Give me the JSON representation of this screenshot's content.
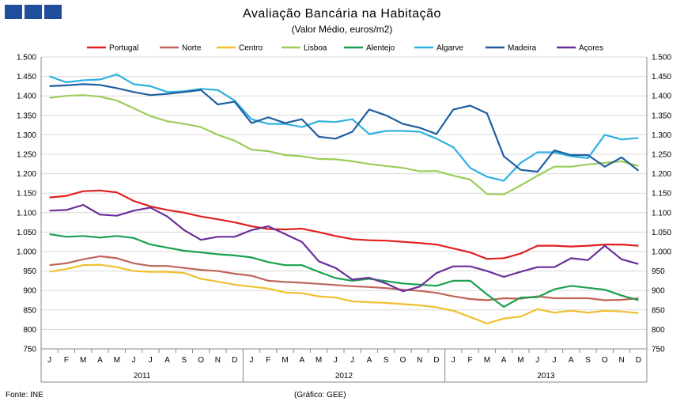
{
  "header": {
    "logo_icon": "ine-logo-blocks",
    "title": "Avaliação Bancária na Habitação",
    "subtitle": "(Valor Médio, euros/m2)"
  },
  "footer": {
    "source": "Fonte: INE",
    "credit": "(Gráfico: GEE)"
  },
  "chart_data": {
    "type": "line",
    "title": "Avaliação Bancária na Habitação",
    "subtitle": "(Valor Médio, euros/m2)",
    "ylabel": "euros/m2",
    "xlabel": "",
    "ylim": [
      750,
      1500
    ],
    "yticks": [
      750,
      800,
      850,
      900,
      950,
      1000,
      1050,
      1100,
      1150,
      1200,
      1250,
      1300,
      1350,
      1400,
      1450,
      1500
    ],
    "ytick_labels": [
      "750",
      "800",
      "850",
      "900",
      "950",
      "1.000",
      "1.050",
      "1.100",
      "1.150",
      "1.200",
      "1.250",
      "1.300",
      "1.350",
      "1.400",
      "1.450",
      "1.500"
    ],
    "grid": "horizontal",
    "legend_position": "top",
    "months": [
      "J",
      "F",
      "M",
      "A",
      "M",
      "J",
      "J",
      "A",
      "S",
      "O",
      "N",
      "D",
      "J",
      "F",
      "M",
      "A",
      "M",
      "J",
      "J",
      "A",
      "S",
      "O",
      "N",
      "D",
      "J",
      "F",
      "M",
      "A",
      "M",
      "J",
      "J",
      "A",
      "S",
      "O",
      "N",
      "D"
    ],
    "years": [
      "2011",
      "2012",
      "2013"
    ],
    "series": [
      {
        "name": "Portugal",
        "color": "#e02020",
        "values": [
          1139,
          1143,
          1155,
          1157,
          1152,
          1130,
          1116,
          1107,
          1100,
          1090,
          1083,
          1075,
          1065,
          1058,
          1057,
          1059,
          1050,
          1040,
          1032,
          1029,
          1028,
          1025,
          1022,
          1018,
          1008,
          998,
          981,
          983,
          995,
          1015,
          1015,
          1013,
          1015,
          1018,
          1018,
          1015
        ]
      },
      {
        "name": "Norte",
        "color": "#c0645a",
        "values": [
          965,
          970,
          980,
          988,
          983,
          970,
          963,
          963,
          958,
          953,
          950,
          943,
          938,
          925,
          922,
          920,
          917,
          914,
          911,
          909,
          906,
          902,
          899,
          894,
          885,
          878,
          875,
          880,
          879,
          885,
          880,
          880,
          880,
          875,
          876,
          880
        ]
      },
      {
        "name": "Centro",
        "color": "#f0c030",
        "values": [
          948,
          955,
          965,
          966,
          960,
          950,
          948,
          948,
          945,
          930,
          923,
          915,
          910,
          905,
          895,
          893,
          885,
          882,
          872,
          870,
          868,
          865,
          862,
          857,
          848,
          832,
          815,
          828,
          833,
          852,
          843,
          848,
          843,
          848,
          846,
          842
        ]
      },
      {
        "name": "Lisboa",
        "color": "#9acd5a",
        "values": [
          1395,
          1400,
          1402,
          1398,
          1388,
          1368,
          1348,
          1335,
          1328,
          1320,
          1300,
          1285,
          1262,
          1258,
          1248,
          1245,
          1238,
          1237,
          1232,
          1225,
          1220,
          1215,
          1206,
          1207,
          1195,
          1185,
          1148,
          1147,
          1170,
          1195,
          1218,
          1218,
          1224,
          1228,
          1232,
          1220
        ]
      },
      {
        "name": "Alentejo",
        "color": "#1aa050",
        "values": [
          1045,
          1038,
          1040,
          1036,
          1040,
          1035,
          1018,
          1010,
          1002,
          998,
          993,
          990,
          985,
          973,
          965,
          965,
          948,
          932,
          925,
          930,
          924,
          918,
          915,
          912,
          925,
          925,
          890,
          858,
          882,
          883,
          903,
          912,
          907,
          902,
          887,
          875
        ]
      },
      {
        "name": "Algarve",
        "color": "#30b0e0",
        "values": [
          1450,
          1435,
          1440,
          1442,
          1455,
          1430,
          1425,
          1410,
          1412,
          1418,
          1415,
          1388,
          1340,
          1328,
          1328,
          1320,
          1335,
          1333,
          1340,
          1302,
          1310,
          1310,
          1308,
          1290,
          1268,
          1215,
          1192,
          1182,
          1228,
          1255,
          1255,
          1245,
          1240,
          1300,
          1288,
          1292
        ]
      },
      {
        "name": "Madeira",
        "color": "#1f5fa0",
        "values": [
          1425,
          1427,
          1430,
          1428,
          1420,
          1410,
          1402,
          1405,
          1410,
          1415,
          1378,
          1385,
          1330,
          1345,
          1330,
          1340,
          1295,
          1290,
          1308,
          1365,
          1350,
          1328,
          1318,
          1302,
          1365,
          1375,
          1355,
          1245,
          1210,
          1205,
          1260,
          1248,
          1248,
          1218,
          1242,
          1208
        ]
      },
      {
        "name": "Açores",
        "color": "#6a2f9a",
        "values": [
          1105,
          1107,
          1120,
          1095,
          1092,
          1105,
          1113,
          1090,
          1055,
          1030,
          1038,
          1038,
          1055,
          1065,
          1045,
          1025,
          975,
          958,
          928,
          933,
          918,
          898,
          910,
          945,
          962,
          962,
          950,
          935,
          948,
          960,
          960,
          983,
          978,
          1015,
          980,
          968
        ]
      }
    ]
  }
}
